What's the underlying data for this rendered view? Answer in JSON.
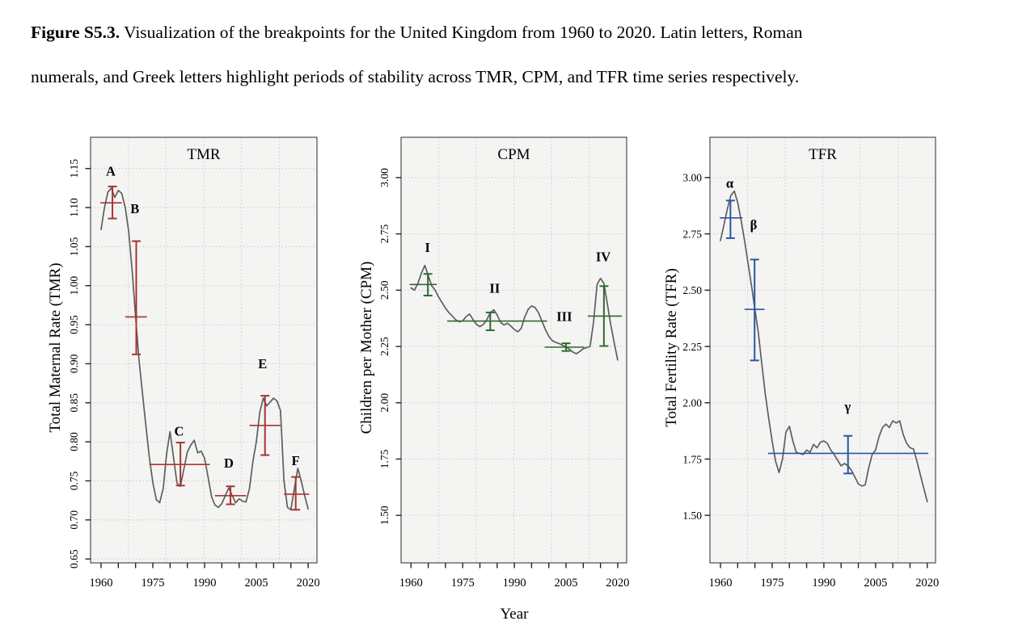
{
  "page": {
    "background": "#FFFFFF"
  },
  "caption": {
    "prefix": "Figure S5.3.",
    "line1_rest": " Visualization of the breakpoints for the United Kingdom from 1960 to 2020. Latin letters, Roman",
    "line2": "numerals, and Greek letters highlight periods of stability across TMR, CPM, and TFR time series respectively."
  },
  "xlabel": "Year",
  "colors": {
    "plot_bg": "#F4F4F3",
    "grid": "#C9C9C9",
    "box": "#3C3C3C",
    "series_line": "#5E5E5E",
    "tick": "#222222",
    "tmr_accent": "#A8352F",
    "cpm_accent": "#2E6B2E",
    "tfr_accent": "#2C55A5"
  },
  "chart_data": [
    {
      "id": "tmr",
      "type": "line",
      "title": "TMR",
      "ylabel": "Total Maternal Rate (TMR)",
      "accent": "#A8352F",
      "grid": true,
      "ytick_orientation": "rotated",
      "xlim": [
        1956.96,
        2022.56
      ],
      "ylim": [
        0.645,
        1.19
      ],
      "yticks": {
        "values": [
          0.65,
          0.7,
          0.75,
          0.8,
          0.85,
          0.9,
          0.95,
          1.0,
          1.05,
          1.1,
          1.15
        ],
        "labels": [
          "0.65",
          "0.70",
          "0.75",
          "0.80",
          "0.85",
          "0.90",
          "0.95",
          "1.00",
          "1.05",
          "1.10",
          "1.15"
        ]
      },
      "xticks_labeled": [
        1960,
        1975,
        1990,
        2005,
        2020
      ],
      "xtick_step": 5,
      "x_start": 1960,
      "x_step": 1,
      "values": [
        1.072,
        1.1,
        1.12,
        1.125,
        1.113,
        1.122,
        1.118,
        1.1,
        1.07,
        1.02,
        0.96,
        0.905,
        0.862,
        0.82,
        0.78,
        0.748,
        0.726,
        0.722,
        0.74,
        0.785,
        0.813,
        0.78,
        0.747,
        0.743,
        0.765,
        0.787,
        0.796,
        0.802,
        0.786,
        0.788,
        0.779,
        0.755,
        0.73,
        0.719,
        0.716,
        0.721,
        0.731,
        0.741,
        0.731,
        0.722,
        0.727,
        0.724,
        0.723,
        0.74,
        0.775,
        0.8,
        0.838,
        0.856,
        0.846,
        0.851,
        0.856,
        0.852,
        0.84,
        0.75,
        0.716,
        0.713,
        0.74,
        0.766,
        0.75,
        0.731,
        0.714
      ],
      "breakpoints": [
        {
          "label": "A",
          "bar_year": 1963.3,
          "mean": 1.106,
          "ci": [
            1.086,
            1.127
          ],
          "span_years": [
            1959.8,
            1966.0
          ],
          "label_pos": [
            1962.8,
            1.141
          ]
        },
        {
          "label": "B",
          "bar_year": 1970.2,
          "mean": 0.96,
          "ci": [
            0.912,
            1.057
          ],
          "span_years": [
            1967.0,
            1973.3
          ],
          "label_pos": [
            1969.8,
            1.093
          ]
        },
        {
          "label": "C",
          "bar_year": 1983.0,
          "mean": 0.771,
          "ci": [
            0.744,
            0.799
          ],
          "span_years": [
            1974.0,
            1991.5
          ],
          "label_pos": [
            1982.6,
            0.808
          ]
        },
        {
          "label": "D",
          "bar_year": 1997.5,
          "mean": 0.731,
          "ci": [
            0.72,
            0.743
          ],
          "span_years": [
            1993.0,
            2002.0
          ],
          "label_pos": [
            1997.0,
            0.767
          ]
        },
        {
          "label": "E",
          "bar_year": 2007.5,
          "mean": 0.821,
          "ci": [
            0.783,
            0.859
          ],
          "span_years": [
            2003.0,
            2012.0
          ],
          "label_pos": [
            2006.8,
            0.894
          ]
        },
        {
          "label": "F",
          "bar_year": 2016.4,
          "mean": 0.733,
          "ci": [
            0.713,
            0.755
          ],
          "span_years": [
            2013.0,
            2020.3
          ],
          "label_pos": [
            2016.4,
            0.77
          ]
        }
      ]
    },
    {
      "id": "cpm",
      "type": "line",
      "title": "CPM",
      "ylabel": "Children per Mother (CPM)",
      "accent": "#2E6B2E",
      "grid": true,
      "ytick_orientation": "rotated",
      "xlim": [
        1957.11,
        2022.6
      ],
      "ylim": [
        1.289,
        3.179
      ],
      "yticks": {
        "values": [
          1.5,
          1.75,
          2.0,
          2.25,
          2.5,
          2.75,
          3.0
        ],
        "labels": [
          "1.50",
          "1.75",
          "2.00",
          "2.25",
          "2.50",
          "2.75",
          "3.00"
        ]
      },
      "xticks_labeled": [
        1960,
        1975,
        1990,
        2005,
        2020
      ],
      "xtick_step": 5,
      "x_start": 1960,
      "x_step": 1,
      "values": [
        2.51,
        2.5,
        2.53,
        2.575,
        2.61,
        2.565,
        2.52,
        2.5,
        2.47,
        2.445,
        2.42,
        2.4,
        2.385,
        2.368,
        2.36,
        2.364,
        2.383,
        2.394,
        2.37,
        2.348,
        2.338,
        2.348,
        2.368,
        2.4,
        2.413,
        2.39,
        2.357,
        2.345,
        2.353,
        2.34,
        2.325,
        2.315,
        2.33,
        2.38,
        2.415,
        2.43,
        2.423,
        2.4,
        2.363,
        2.325,
        2.295,
        2.276,
        2.268,
        2.263,
        2.255,
        2.248,
        2.238,
        2.225,
        2.218,
        2.228,
        2.24,
        2.245,
        2.25,
        2.36,
        2.525,
        2.553,
        2.53,
        2.44,
        2.345,
        2.265,
        2.19
      ],
      "breakpoints": [
        {
          "label": "I",
          "bar_year": 1964.9,
          "mean": 2.525,
          "ci": [
            2.476,
            2.572
          ],
          "span_years": [
            1959.6,
            1967.5
          ],
          "label_pos": [
            1964.8,
            2.669
          ]
        },
        {
          "label": "II",
          "bar_year": 1983.0,
          "mean": 2.363,
          "ci": [
            2.322,
            2.401
          ],
          "span_years": [
            1970.5,
            1999.5
          ],
          "label_pos": [
            1984.3,
            2.489
          ]
        },
        {
          "label": "III",
          "bar_year": 2005.0,
          "mean": 2.247,
          "ci": [
            2.23,
            2.264
          ],
          "span_years": [
            1998.8,
            2010.3
          ],
          "label_pos": [
            2004.5,
            2.364
          ]
        },
        {
          "label": "IV",
          "bar_year": 2016.0,
          "mean": 2.385,
          "ci": [
            2.252,
            2.518
          ],
          "span_years": [
            2011.3,
            2021.2
          ],
          "label_pos": [
            2015.8,
            2.629
          ]
        }
      ]
    },
    {
      "id": "tfr",
      "type": "line",
      "title": "TFR",
      "ylabel": "Total Fertility Rate (TFR)",
      "accent": "#2C55A5",
      "grid": true,
      "ytick_orientation": "horizontal",
      "xlim": [
        1956.95,
        2022.4
      ],
      "ylim": [
        1.289,
        3.179
      ],
      "yticks": {
        "values": [
          1.5,
          1.75,
          2.0,
          2.25,
          2.5,
          2.75,
          3.0
        ],
        "labels": [
          "1.50",
          "1.75",
          "2.00",
          "2.25",
          "2.50",
          "2.75",
          "3.00"
        ]
      },
      "xticks_labeled": [
        1960,
        1975,
        1990,
        2005,
        2020
      ],
      "xtick_step": 5,
      "x_start": 1960,
      "x_step": 1,
      "values": [
        2.72,
        2.79,
        2.86,
        2.92,
        2.94,
        2.89,
        2.81,
        2.72,
        2.62,
        2.52,
        2.415,
        2.31,
        2.17,
        2.04,
        1.93,
        1.83,
        1.74,
        1.69,
        1.75,
        1.87,
        1.895,
        1.83,
        1.78,
        1.775,
        1.77,
        1.79,
        1.78,
        1.815,
        1.8,
        1.825,
        1.83,
        1.82,
        1.79,
        1.77,
        1.745,
        1.72,
        1.73,
        1.72,
        1.7,
        1.67,
        1.64,
        1.63,
        1.635,
        1.71,
        1.77,
        1.79,
        1.85,
        1.89,
        1.905,
        1.89,
        1.92,
        1.91,
        1.92,
        1.86,
        1.82,
        1.8,
        1.795,
        1.74,
        1.68,
        1.62,
        1.56
      ],
      "breakpoints": [
        {
          "label": "α",
          "bar_year": 1962.9,
          "mean": 2.821,
          "ci": [
            2.731,
            2.898
          ],
          "span_years": [
            1959.8,
            1966.4
          ],
          "label_pos": [
            1962.7,
            2.954
          ]
        },
        {
          "label": "β",
          "bar_year": 1969.9,
          "mean": 2.415,
          "ci": [
            2.188,
            2.636
          ],
          "span_years": [
            1967.0,
            1972.8
          ],
          "label_pos": [
            1969.6,
            2.771
          ]
        },
        {
          "label": "γ",
          "bar_year": 1997.0,
          "mean": 1.775,
          "ci": [
            1.686,
            1.853
          ],
          "span_years": [
            1973.8,
            2020.3
          ],
          "label_pos": [
            1996.9,
            1.964
          ]
        }
      ]
    }
  ]
}
